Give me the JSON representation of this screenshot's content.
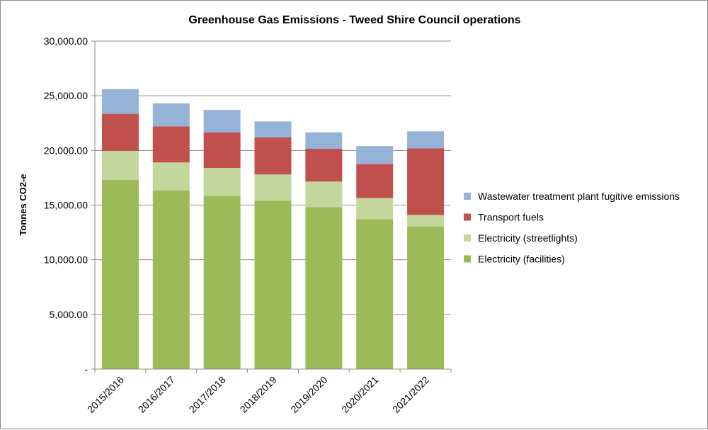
{
  "chart_data": {
    "type": "bar",
    "stacked": true,
    "title": "Greenhouse Gas Emissions - Tweed Shire Council operations",
    "ylabel": "Tonnes CO2-e",
    "xlabel": "",
    "ylim": [
      0,
      30000
    ],
    "yticks": [
      0,
      5000,
      10000,
      15000,
      20000,
      25000,
      30000
    ],
    "ytick_labels": [
      "-",
      "5,000.00",
      "10,000.00",
      "15,000.00",
      "20,000.00",
      "25,000.00",
      "30,000.00"
    ],
    "grid": "horizontal",
    "legend_position": "right",
    "categories": [
      "2015/2016",
      "2016/2017",
      "2017/2018",
      "2018/2019",
      "2019/2020",
      "2020/2021",
      "2021/2022"
    ],
    "series": [
      {
        "name": "Electricity (facilities)",
        "color": "#9bbb59",
        "values": [
          17300,
          16350,
          15850,
          15400,
          14800,
          13700,
          13050
        ]
      },
      {
        "name": "Electricity (streetlights)",
        "color": "#c3d69b",
        "values": [
          2650,
          2550,
          2550,
          2400,
          2350,
          1950,
          1050
        ]
      },
      {
        "name": "Transport fuels",
        "color": "#c0504d",
        "values": [
          3400,
          3300,
          3250,
          3400,
          3000,
          3100,
          6100
        ]
      },
      {
        "name": "Wastewater treatment plant fugitive emissions",
        "color": "#95b3d7",
        "values": [
          2250,
          2100,
          2050,
          1450,
          1500,
          1650,
          1550
        ]
      }
    ]
  }
}
